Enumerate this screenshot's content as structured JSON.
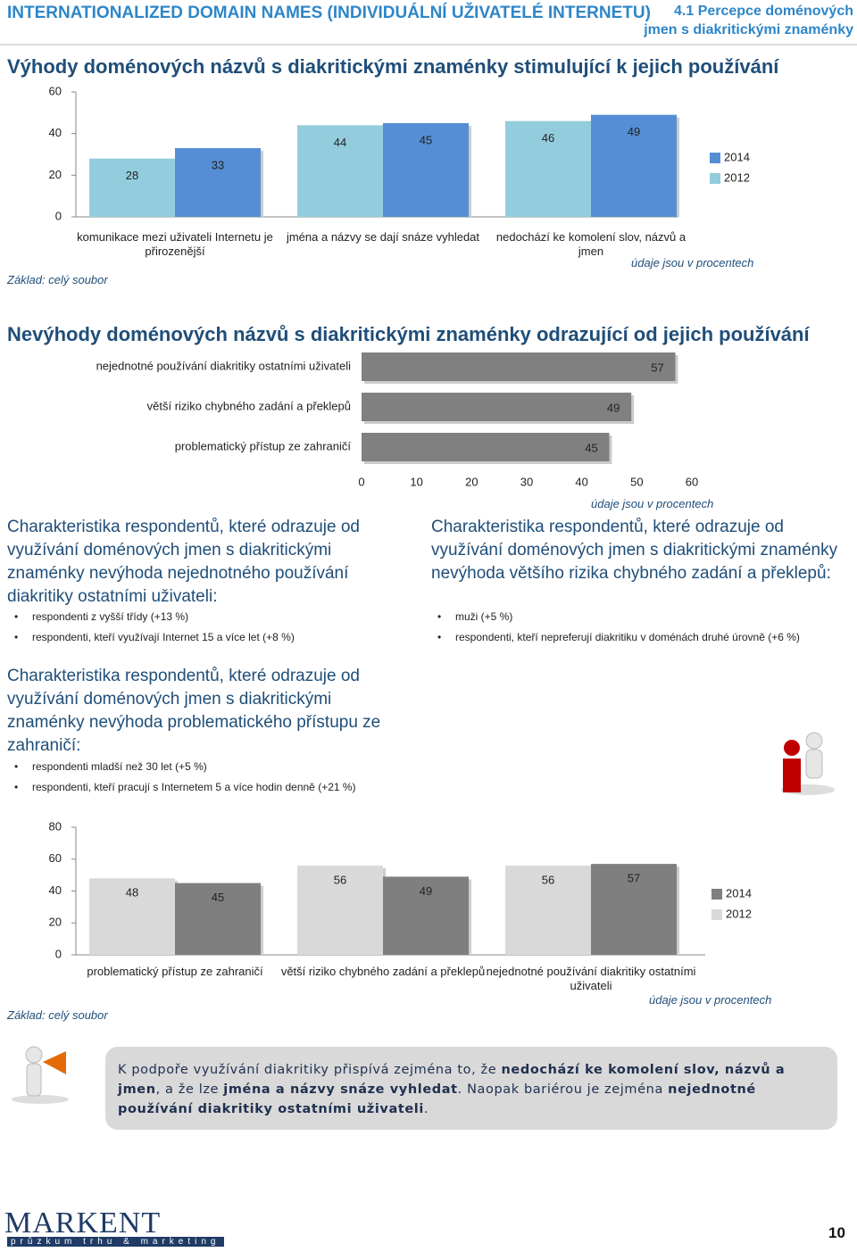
{
  "header": {
    "title": "INTERNATIONALIZED DOMAIN NAMES (INDIVIDUÁLNÍ UŽIVATELÉ INTERNETU)",
    "section": [
      "4.1 Percepce doménových",
      "jmen s diakritickými znaménky"
    ]
  },
  "chart_data": [
    {
      "type": "bar",
      "title": "Výhody doménových názvů s diakritickými znaménky stimulující k jejich používání",
      "categories": [
        "komunikace mezi uživateli Internetu je přirozenější",
        "jména a názvy se dají snáze vyhledat",
        "nedochází ke komolení slov, názvů a jmen"
      ],
      "series": [
        {
          "name": "2014",
          "color": "#558ed5",
          "values": [
            33,
            45,
            49
          ]
        },
        {
          "name": "2012",
          "color": "#93cddd",
          "values": [
            28,
            44,
            46
          ]
        }
      ],
      "ylim": [
        0,
        60
      ],
      "yticks": [
        0,
        20,
        40,
        60
      ],
      "base": "Základ: celý soubor",
      "note": "údaje jsou v procentech"
    },
    {
      "type": "barh",
      "title": "Nevýhody doménových názvů s diakritickými znaménky odrazující od jejich používání",
      "categories": [
        "nejednotné používání diakritiky ostatními uživateli",
        "větší riziko chybného zadání a překlepů",
        "problematický přístup ze zahraničí"
      ],
      "values": [
        57,
        49,
        45
      ],
      "color": "#808080",
      "xlim": [
        0,
        60
      ],
      "xticks": [
        0,
        10,
        20,
        30,
        40,
        50,
        60
      ],
      "note": "údaje jsou v procentech"
    },
    {
      "type": "bar",
      "categories": [
        "problematický přístup ze zahraničí",
        "větší riziko chybného zadání a překlepů",
        "nejednotné používání diakritiky ostatními uživateli"
      ],
      "series": [
        {
          "name": "2014",
          "color": "#7f7f7f",
          "values": [
            45,
            49,
            57
          ]
        },
        {
          "name": "2012",
          "color": "#d9d9d9",
          "values": [
            48,
            56,
            56
          ]
        }
      ],
      "ylim": [
        0,
        80
      ],
      "yticks": [
        0,
        20,
        40,
        60,
        80
      ],
      "base": "Základ: celý soubor",
      "note": "údaje jsou v procentech"
    }
  ],
  "characteristics": [
    {
      "heading": "Charakteristika respondentů, které odrazuje od využívání doménových jmen s diakritickými znaménky nevýhoda nejednotného používání diakritiky ostatními uživateli:",
      "items": [
        "respondenti z vyšší třídy (+13 %)",
        "respondenti, kteří využívají Internet 15 a více let (+8 %)"
      ]
    },
    {
      "heading": "Charakteristika respondentů, které odrazuje od využívání doménových jmen s diakritickými znaménky nevýhoda většího rizika chybného zadání a překlepů:",
      "items": [
        "muži (+5 %)",
        "respondenti, kteří nepreferují diakritiku v doménách druhé úrovně (+6 %)"
      ]
    },
    {
      "heading": "Charakteristika respondentů, které odrazuje od využívání doménových jmen s diakritickými znaménky nevýhoda problematického přístupu ze zahraničí:",
      "items": [
        "respondenti mladší než 30 let (+5 %)",
        "respondenti, kteří pracují s Internetem 5 a více hodin denně (+21 %)"
      ]
    }
  ],
  "summary": [
    {
      "text": "K podpoře využívání diakritiky přispívá zejména to, že ",
      "bold": false
    },
    {
      "text": "nedochází ke komolení slov, názvů a jmen",
      "bold": true
    },
    {
      "text": ", a že lze ",
      "bold": false
    },
    {
      "text": "jména a názvy snáze vyhledat",
      "bold": true
    },
    {
      "text": ". Naopak bariérou je zejména ",
      "bold": false
    },
    {
      "text": "nejednotné používání diakritiky ostatními uživateli",
      "bold": true
    },
    {
      "text": ".",
      "bold": false
    }
  ],
  "footer": {
    "logo": "MARKENT",
    "tagline": "průzkum trhu & marketing",
    "page": 10
  }
}
